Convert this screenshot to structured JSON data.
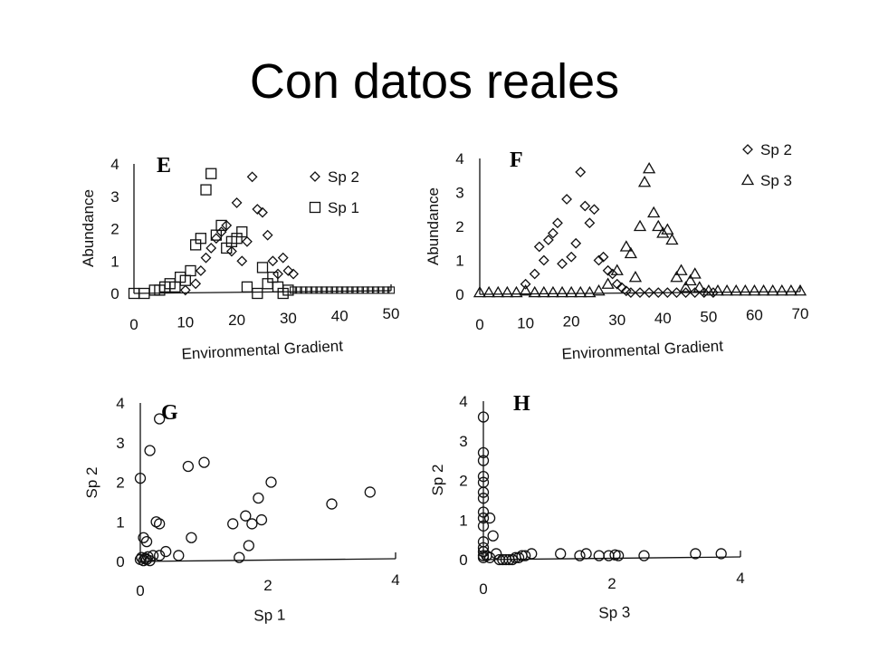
{
  "slide": {
    "title": "Con datos reales"
  },
  "chart_data": [
    {
      "id": "E",
      "type": "scatter",
      "panel_label": "E",
      "xlabel": "Environmental Gradient",
      "ylabel": "Abundance",
      "xlim": [
        0,
        50
      ],
      "ylim": [
        0,
        4
      ],
      "xticks": [
        "0",
        "10",
        "20",
        "30",
        "40",
        "50"
      ],
      "yticks": [
        "0",
        "1",
        "2",
        "3",
        "4"
      ],
      "legend_position": "right",
      "series": [
        {
          "name": "Sp 2",
          "marker": "diamond",
          "points": [
            [
              10,
              0.1
            ],
            [
              12,
              0.3
            ],
            [
              13,
              0.7
            ],
            [
              14,
              1.1
            ],
            [
              15,
              1.4
            ],
            [
              16,
              1.7
            ],
            [
              17,
              1.9
            ],
            [
              18,
              2.1
            ],
            [
              19,
              1.3
            ],
            [
              20,
              2.8
            ],
            [
              21,
              1.0
            ],
            [
              22,
              1.6
            ],
            [
              23,
              3.6
            ],
            [
              24,
              2.6
            ],
            [
              25,
              2.5
            ],
            [
              26,
              1.8
            ],
            [
              27,
              1.0
            ],
            [
              28,
              0.6
            ],
            [
              29,
              1.1
            ],
            [
              30,
              0.7
            ],
            [
              31,
              0.6
            ]
          ]
        },
        {
          "name": "Sp 1",
          "marker": "square",
          "points": [
            [
              0,
              0.0
            ],
            [
              2,
              0.0
            ],
            [
              4,
              0.1
            ],
            [
              5,
              0.1
            ],
            [
              6,
              0.2
            ],
            [
              7,
              0.3
            ],
            [
              8,
              0.2
            ],
            [
              9,
              0.5
            ],
            [
              10,
              0.4
            ],
            [
              11,
              0.7
            ],
            [
              12,
              1.5
            ],
            [
              13,
              1.7
            ],
            [
              14,
              3.2
            ],
            [
              15,
              3.7
            ],
            [
              16,
              1.8
            ],
            [
              17,
              2.1
            ],
            [
              18,
              1.4
            ],
            [
              19,
              1.6
            ],
            [
              20,
              1.7
            ],
            [
              21,
              1.9
            ],
            [
              22,
              0.2
            ],
            [
              24,
              0.0
            ],
            [
              25,
              0.8
            ],
            [
              26,
              0.3
            ],
            [
              27,
              0.5
            ],
            [
              28,
              0.2
            ],
            [
              29,
              0.0
            ],
            [
              30,
              0.1
            ]
          ]
        },
        {
          "name": "",
          "marker": "square-small",
          "points": [
            [
              31,
              0.1
            ],
            [
              32,
              0.1
            ],
            [
              33,
              0.1
            ],
            [
              34,
              0.1
            ],
            [
              35,
              0.1
            ],
            [
              36,
              0.1
            ],
            [
              37,
              0.1
            ],
            [
              38,
              0.1
            ],
            [
              39,
              0.1
            ],
            [
              40,
              0.1
            ],
            [
              41,
              0.1
            ],
            [
              42,
              0.1
            ],
            [
              43,
              0.1
            ],
            [
              44,
              0.1
            ],
            [
              45,
              0.1
            ],
            [
              46,
              0.1
            ],
            [
              47,
              0.1
            ],
            [
              48,
              0.1
            ],
            [
              49,
              0.1
            ],
            [
              50,
              0.1
            ]
          ]
        }
      ]
    },
    {
      "id": "F",
      "type": "scatter",
      "panel_label": "F",
      "xlabel": "Environmental Gradient",
      "ylabel": "Abundance",
      "xlim": [
        0,
        70
      ],
      "ylim": [
        0,
        4
      ],
      "xticks": [
        "0",
        "10",
        "20",
        "30",
        "40",
        "50",
        "60",
        "70"
      ],
      "yticks": [
        "0",
        "1",
        "2",
        "3",
        "4"
      ],
      "legend_position": "top-right",
      "series": [
        {
          "name": "Sp 2",
          "marker": "diamond",
          "points": [
            [
              10,
              0.3
            ],
            [
              12,
              0.6
            ],
            [
              13,
              1.4
            ],
            [
              14,
              1.0
            ],
            [
              15,
              1.6
            ],
            [
              16,
              1.8
            ],
            [
              17,
              2.1
            ],
            [
              18,
              0.9
            ],
            [
              19,
              2.8
            ],
            [
              20,
              1.1
            ],
            [
              21,
              1.5
            ],
            [
              22,
              3.6
            ],
            [
              23,
              2.6
            ],
            [
              24,
              2.1
            ],
            [
              25,
              2.5
            ],
            [
              26,
              1.0
            ],
            [
              27,
              1.1
            ],
            [
              28,
              0.7
            ],
            [
              29,
              0.6
            ],
            [
              30,
              0.3
            ],
            [
              31,
              0.2
            ],
            [
              32,
              0.1
            ],
            [
              33,
              0.05
            ],
            [
              35,
              0.05
            ],
            [
              37,
              0.05
            ],
            [
              39,
              0.05
            ],
            [
              41,
              0.05
            ],
            [
              43,
              0.05
            ],
            [
              45,
              0.05
            ],
            [
              47,
              0.05
            ],
            [
              49,
              0.05
            ],
            [
              51,
              0.05
            ]
          ]
        },
        {
          "name": "Sp 3",
          "marker": "triangle",
          "points": [
            [
              0,
              0.05
            ],
            [
              2,
              0.05
            ],
            [
              4,
              0.05
            ],
            [
              6,
              0.05
            ],
            [
              8,
              0.05
            ],
            [
              10,
              0.1
            ],
            [
              12,
              0.05
            ],
            [
              14,
              0.05
            ],
            [
              16,
              0.05
            ],
            [
              18,
              0.05
            ],
            [
              20,
              0.05
            ],
            [
              22,
              0.05
            ],
            [
              24,
              0.05
            ],
            [
              26,
              0.1
            ],
            [
              28,
              0.3
            ],
            [
              30,
              0.7
            ],
            [
              32,
              1.4
            ],
            [
              33,
              1.2
            ],
            [
              34,
              0.5
            ],
            [
              35,
              2.0
            ],
            [
              36,
              3.3
            ],
            [
              37,
              3.7
            ],
            [
              38,
              2.4
            ],
            [
              39,
              2.0
            ],
            [
              40,
              1.8
            ],
            [
              41,
              1.9
            ],
            [
              42,
              1.6
            ],
            [
              43,
              0.5
            ],
            [
              44,
              0.7
            ],
            [
              45,
              0.2
            ],
            [
              46,
              0.4
            ],
            [
              47,
              0.6
            ],
            [
              48,
              0.2
            ],
            [
              50,
              0.1
            ],
            [
              52,
              0.1
            ],
            [
              54,
              0.1
            ],
            [
              56,
              0.1
            ],
            [
              58,
              0.1
            ],
            [
              60,
              0.1
            ],
            [
              62,
              0.1
            ],
            [
              64,
              0.1
            ],
            [
              66,
              0.1
            ],
            [
              68,
              0.1
            ],
            [
              70,
              0.1
            ]
          ]
        }
      ]
    },
    {
      "id": "G",
      "type": "scatter",
      "panel_label": "G",
      "xlabel": "Sp 1",
      "ylabel": "Sp 2",
      "xlim": [
        0,
        4
      ],
      "ylim": [
        0,
        4
      ],
      "xticks": [
        "0",
        "2",
        "4"
      ],
      "yticks": [
        "0",
        "1",
        "2",
        "3",
        "4"
      ],
      "series": [
        {
          "name": "",
          "marker": "circle",
          "points": [
            [
              0.0,
              2.1
            ],
            [
              0.05,
              0.6
            ],
            [
              0.1,
              0.5
            ],
            [
              0.15,
              2.8
            ],
            [
              0.3,
              3.6
            ],
            [
              0.25,
              1.0
            ],
            [
              0.3,
              0.95
            ],
            [
              0.4,
              0.25
            ],
            [
              0.2,
              0.15
            ],
            [
              0.3,
              0.15
            ],
            [
              0.0,
              0.05
            ],
            [
              0.05,
              0.02
            ],
            [
              0.1,
              0.05
            ],
            [
              0.15,
              0.02
            ],
            [
              0.02,
              0.1
            ],
            [
              0.08,
              0.08
            ],
            [
              0.12,
              0.12
            ],
            [
              0.6,
              0.15
            ],
            [
              0.75,
              2.4
            ],
            [
              0.8,
              0.6
            ],
            [
              1.0,
              2.5
            ],
            [
              1.45,
              0.95
            ],
            [
              1.55,
              0.1
            ],
            [
              1.65,
              1.15
            ],
            [
              1.7,
              0.4
            ],
            [
              1.75,
              0.95
            ],
            [
              1.85,
              1.6
            ],
            [
              1.9,
              1.05
            ],
            [
              2.05,
              2.0
            ],
            [
              3.0,
              1.45
            ],
            [
              3.6,
              1.75
            ]
          ]
        }
      ]
    },
    {
      "id": "H",
      "type": "scatter",
      "panel_label": "H",
      "xlabel": "Sp 3",
      "ylabel": "Sp 2",
      "xlim": [
        0,
        4
      ],
      "ylim": [
        0,
        4
      ],
      "xticks": [
        "0",
        "2",
        "4"
      ],
      "yticks": [
        "0",
        "1",
        "2",
        "3",
        "4"
      ],
      "series": [
        {
          "name": "",
          "marker": "circle",
          "points": [
            [
              0.0,
              3.6
            ],
            [
              0.0,
              2.7
            ],
            [
              0.0,
              2.5
            ],
            [
              0.0,
              2.1
            ],
            [
              0.0,
              1.95
            ],
            [
              0.0,
              1.7
            ],
            [
              0.0,
              1.55
            ],
            [
              0.0,
              1.2
            ],
            [
              0.0,
              1.05
            ],
            [
              0.0,
              0.85
            ],
            [
              0.0,
              0.45
            ],
            [
              0.0,
              0.3
            ],
            [
              0.0,
              0.2
            ],
            [
              0.0,
              0.1
            ],
            [
              0.0,
              0.05
            ],
            [
              0.05,
              0.1
            ],
            [
              0.1,
              0.05
            ],
            [
              0.1,
              1.05
            ],
            [
              0.15,
              0.6
            ],
            [
              0.2,
              0.15
            ],
            [
              0.25,
              0.0
            ],
            [
              0.3,
              0.0
            ],
            [
              0.35,
              0.0
            ],
            [
              0.4,
              0.0
            ],
            [
              0.45,
              0.0
            ],
            [
              0.5,
              0.05
            ],
            [
              0.55,
              0.05
            ],
            [
              0.6,
              0.1
            ],
            [
              0.65,
              0.1
            ],
            [
              0.75,
              0.15
            ],
            [
              1.2,
              0.15
            ],
            [
              1.5,
              0.1
            ],
            [
              1.6,
              0.15
            ],
            [
              1.8,
              0.1
            ],
            [
              1.95,
              0.1
            ],
            [
              2.05,
              0.12
            ],
            [
              2.1,
              0.1
            ],
            [
              2.5,
              0.1
            ],
            [
              3.3,
              0.15
            ],
            [
              3.7,
              0.15
            ]
          ]
        }
      ]
    }
  ]
}
